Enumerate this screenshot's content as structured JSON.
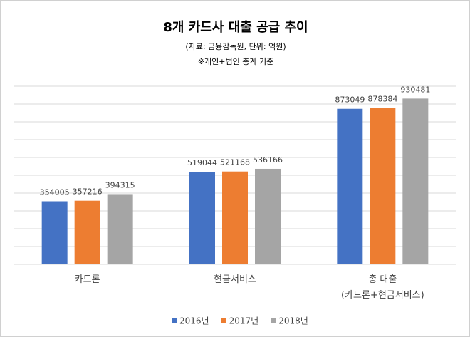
{
  "chart_data": {
    "type": "bar",
    "title": "8개 카드사 대출 공급 추이",
    "subtitle": "(자료: 금융감독원, 단위: 억원)",
    "note": "※개인+법인 총계 기준",
    "categories": [
      "카드론",
      "현금서비스",
      "총 대출\n(카드론+현금서비스)"
    ],
    "series": [
      {
        "name": "2016년",
        "color": "#4472c4",
        "values": [
          354005,
          519044,
          873049
        ]
      },
      {
        "name": "2017년",
        "color": "#ed7d31",
        "values": [
          357216,
          521168,
          878384
        ]
      },
      {
        "name": "2018년",
        "color": "#a5a5a5",
        "values": [
          394315,
          536166,
          930481
        ]
      }
    ],
    "ylim": [
      0,
      1000000
    ],
    "yticks": [
      0,
      100000,
      200000,
      300000,
      400000,
      500000,
      600000,
      700000,
      800000,
      900000,
      1000000
    ],
    "grid": true,
    "legend": "bottom"
  }
}
